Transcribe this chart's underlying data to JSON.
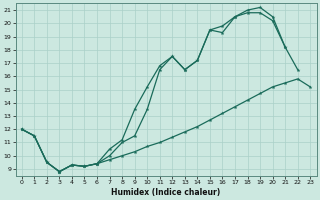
{
  "xlabel": "Humidex (Indice chaleur)",
  "xlim": [
    -0.5,
    23.5
  ],
  "ylim": [
    8.5,
    21.5
  ],
  "xticks": [
    0,
    1,
    2,
    3,
    4,
    5,
    6,
    7,
    8,
    9,
    10,
    11,
    12,
    13,
    14,
    15,
    16,
    17,
    18,
    19,
    20,
    21,
    22,
    23
  ],
  "yticks": [
    9,
    10,
    11,
    12,
    13,
    14,
    15,
    16,
    17,
    18,
    19,
    20,
    21
  ],
  "bg_color": "#cce8e0",
  "line_color": "#1a6b5a",
  "grid_color": "#aad0c8",
  "line1_x": [
    0,
    1,
    2,
    3,
    4,
    5,
    6,
    7,
    8,
    9,
    10,
    11,
    12,
    13,
    14,
    15,
    16,
    17,
    18,
    19,
    20,
    21,
    22,
    23
  ],
  "line1_y": [
    12,
    11.5,
    9.5,
    8.8,
    9.3,
    9.2,
    9.4,
    9.7,
    10.0,
    10.3,
    10.7,
    11.0,
    11.4,
    11.8,
    12.2,
    12.7,
    13.2,
    13.7,
    14.2,
    14.7,
    15.2,
    15.5,
    15.8,
    15.2
  ],
  "line2_x": [
    0,
    1,
    2,
    3,
    4,
    5,
    6,
    7,
    8,
    9,
    10,
    11,
    12,
    13,
    14,
    15,
    16,
    17,
    18,
    19,
    20,
    21,
    22
  ],
  "line2_y": [
    12,
    11.5,
    9.5,
    8.8,
    9.3,
    9.2,
    9.4,
    10.5,
    11.2,
    13.5,
    15.2,
    16.8,
    17.5,
    16.5,
    17.2,
    19.5,
    19.3,
    20.5,
    20.8,
    20.8,
    20.2,
    18.2,
    16.5
  ],
  "line3_x": [
    0,
    1,
    2,
    3,
    4,
    5,
    6,
    7,
    8,
    9,
    10,
    11,
    12,
    13,
    14,
    15,
    16,
    17,
    18,
    19,
    20,
    21
  ],
  "line3_y": [
    12,
    11.5,
    9.5,
    8.8,
    9.3,
    9.2,
    9.4,
    10.0,
    11.0,
    11.5,
    13.5,
    16.5,
    17.5,
    16.5,
    17.2,
    19.5,
    19.8,
    20.5,
    21.0,
    21.2,
    20.5,
    18.2
  ]
}
